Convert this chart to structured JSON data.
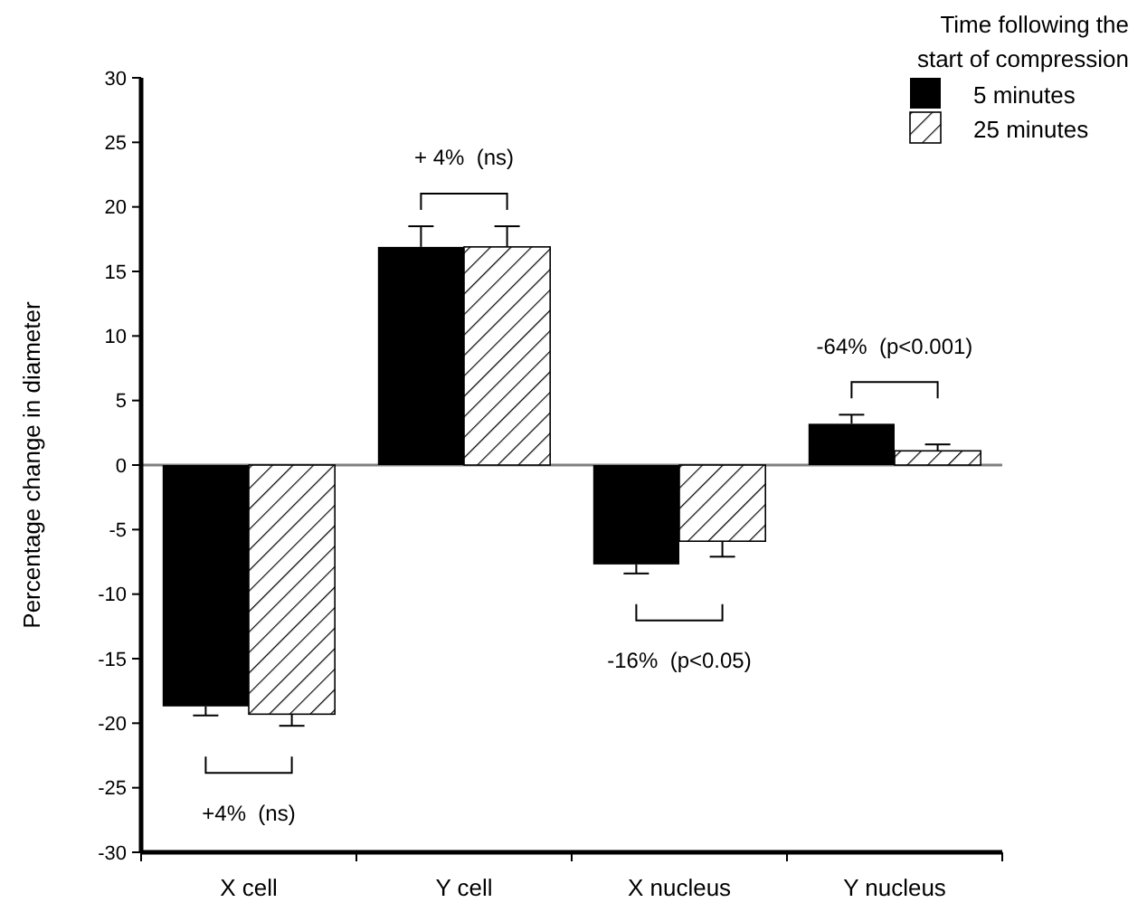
{
  "chart_data": {
    "type": "bar",
    "ylabel": "Percentage change in diameter",
    "legend_title": "Time following the start of compression",
    "legend": "top right",
    "categories": [
      "X cell",
      "Y cell",
      "X nucleus",
      "Y nucleus"
    ],
    "series": [
      {
        "name": "5 minutes",
        "color": "#000000",
        "values": [
          -18.7,
          16.9,
          -7.7,
          3.2
        ],
        "errors": [
          [
            -19.4,
            -18.7
          ],
          [
            16.9,
            18.5
          ],
          [
            -8.4,
            -7.7
          ],
          [
            3.2,
            3.9
          ]
        ]
      },
      {
        "name": "25 minutes",
        "color": "#000000",
        "values": [
          -19.3,
          16.9,
          -5.9,
          1.1
        ],
        "errors": [
          [
            -20.2,
            -19.3
          ],
          [
            16.9,
            18.5
          ],
          [
            -7.1,
            -5.9
          ],
          [
            1.1,
            1.6
          ]
        ]
      }
    ],
    "ylim": [
      -30,
      30
    ],
    "yticks": [
      -30,
      -25,
      -20,
      -15,
      -10,
      -5,
      0,
      5,
      10,
      15,
      20,
      25,
      30
    ],
    "ref_lines": [
      {
        "axis": "y",
        "value": 0,
        "color": "#808080"
      }
    ],
    "annotations": [
      "+4%  (ns)",
      "+ 4%  (ns)",
      "-16%  (p<0.05)",
      "-64%  (p<0.001)"
    ]
  }
}
